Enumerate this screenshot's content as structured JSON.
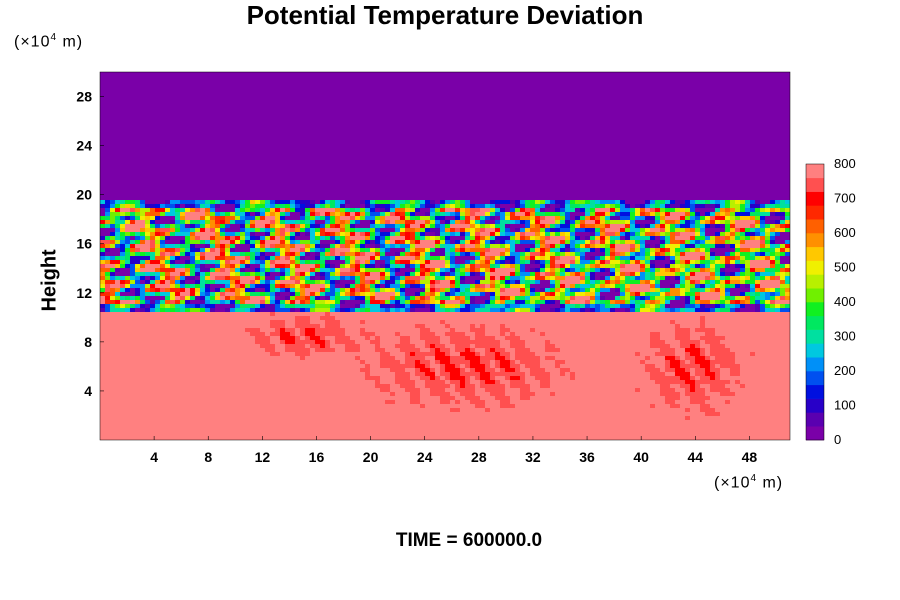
{
  "chart_data": {
    "type": "heatmap",
    "title": "Potential Temperature Deviation",
    "ylabel": "Height",
    "x_unit_prefix": "(×10",
    "unit_exp": "4",
    "unit_suffix": " m)",
    "xlim": [
      0,
      51
    ],
    "ylim": [
      0,
      30
    ],
    "x_ticks": [
      4,
      8,
      12,
      16,
      20,
      24,
      28,
      32,
      36,
      40,
      44,
      48
    ],
    "y_ticks": [
      4,
      8,
      12,
      16,
      20,
      24,
      28
    ],
    "colorbar": {
      "range": [
        0,
        800
      ],
      "ticks": [
        0,
        100,
        200,
        300,
        400,
        500,
        600,
        700,
        800
      ],
      "colors": [
        "#7a00a8",
        "#5a00b0",
        "#2800c8",
        "#0010e0",
        "#0050f0",
        "#0090f8",
        "#00c8e0",
        "#00e0a0",
        "#00e860",
        "#10f020",
        "#70f000",
        "#b8f000",
        "#f0f000",
        "#ffc800",
        "#ff9000",
        "#ff6000",
        "#ff2800",
        "#ff0000",
        "#ff5050",
        "#ff8080"
      ]
    },
    "fields": {
      "upper_layer": {
        "y_range": [
          19.5,
          30
        ],
        "value": 0
      },
      "turbulent_band": {
        "y_range": [
          10.5,
          19.5
        ],
        "value_range": [
          0,
          800
        ]
      },
      "lower_layer": {
        "y_range": [
          0,
          10.5
        ],
        "value_range": [
          700,
          800
        ]
      }
    },
    "annotation": "TIME = 600000.0"
  }
}
